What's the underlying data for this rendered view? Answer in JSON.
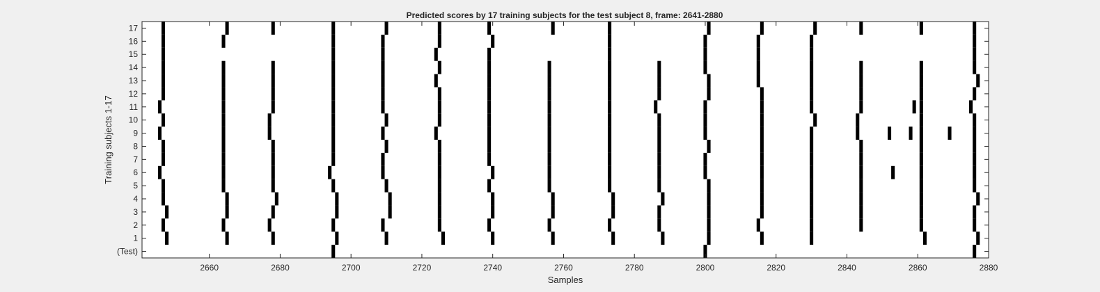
{
  "chart_data": {
    "type": "heatmap",
    "title": "Predicted scores by 17 training subjects for the test subject 8, frame: 2641-2880",
    "xlabel": "Samples",
    "ylabel": "Training subjects 1-17",
    "xlim": [
      2641,
      2880
    ],
    "xticks": [
      2660,
      2680,
      2700,
      2720,
      2740,
      2760,
      2780,
      2800,
      2820,
      2840,
      2860,
      2880
    ],
    "rows": [
      "(Test)",
      "1",
      "2",
      "3",
      "4",
      "5",
      "6",
      "7",
      "8",
      "9",
      "10",
      "11",
      "12",
      "13",
      "14",
      "15",
      "16",
      "17"
    ],
    "grid": false,
    "colors": {
      "mark": "#000000",
      "background": "#ffffff",
      "figure": "#f0f0f0"
    },
    "series": [
      {
        "row": "(Test)",
        "x": [
          2695,
          2800,
          2876
        ]
      },
      {
        "row": "1",
        "x": [
          2648,
          2665,
          2678,
          2696,
          2710,
          2726,
          2740,
          2757,
          2774,
          2788,
          2801,
          2816,
          2830,
          2862,
          2877
        ]
      },
      {
        "row": "2",
        "x": [
          2647,
          2664,
          2677,
          2695,
          2709,
          2725,
          2739,
          2756,
          2773,
          2787,
          2801,
          2815,
          2830,
          2844,
          2861,
          2876
        ]
      },
      {
        "row": "3",
        "x": [
          2648,
          2665,
          2678,
          2696,
          2711,
          2725,
          2740,
          2757,
          2774,
          2787,
          2801,
          2816,
          2830,
          2844,
          2861,
          2876
        ]
      },
      {
        "row": "4",
        "x": [
          2647,
          2665,
          2679,
          2696,
          2711,
          2725,
          2740,
          2757,
          2774,
          2788,
          2801,
          2816,
          2830,
          2844,
          2861,
          2877
        ]
      },
      {
        "row": "5",
        "x": [
          2647,
          2664,
          2678,
          2695,
          2710,
          2725,
          2739,
          2756,
          2773,
          2787,
          2801,
          2816,
          2830,
          2844,
          2861,
          2876
        ]
      },
      {
        "row": "6",
        "x": [
          2646,
          2664,
          2678,
          2694,
          2709,
          2725,
          2740,
          2756,
          2773,
          2787,
          2800,
          2816,
          2830,
          2844,
          2853,
          2861,
          2876
        ]
      },
      {
        "row": "7",
        "x": [
          2647,
          2664,
          2678,
          2695,
          2709,
          2725,
          2739,
          2756,
          2773,
          2787,
          2800,
          2816,
          2830,
          2844,
          2861,
          2876
        ]
      },
      {
        "row": "8",
        "x": [
          2647,
          2664,
          2678,
          2695,
          2710,
          2725,
          2739,
          2756,
          2773,
          2787,
          2801,
          2816,
          2830,
          2844,
          2861,
          2876
        ]
      },
      {
        "row": "9",
        "x": [
          2646,
          2664,
          2677,
          2695,
          2709,
          2724,
          2739,
          2756,
          2773,
          2787,
          2800,
          2816,
          2830,
          2843,
          2852,
          2858,
          2861,
          2869,
          2876
        ]
      },
      {
        "row": "10",
        "x": [
          2647,
          2664,
          2677,
          2695,
          2710,
          2725,
          2739,
          2756,
          2773,
          2787,
          2800,
          2816,
          2831,
          2843,
          2861,
          2876
        ]
      },
      {
        "row": "11",
        "x": [
          2646,
          2664,
          2678,
          2695,
          2709,
          2725,
          2739,
          2756,
          2773,
          2786,
          2800,
          2816,
          2830,
          2844,
          2859,
          2861,
          2875
        ]
      },
      {
        "row": "12",
        "x": [
          2647,
          2664,
          2678,
          2695,
          2709,
          2725,
          2739,
          2756,
          2773,
          2787,
          2801,
          2816,
          2830,
          2844,
          2861,
          2876
        ]
      },
      {
        "row": "13",
        "x": [
          2647,
          2664,
          2678,
          2695,
          2709,
          2724,
          2739,
          2756,
          2773,
          2787,
          2801,
          2815,
          2830,
          2844,
          2861,
          2877
        ]
      },
      {
        "row": "14",
        "x": [
          2647,
          2664,
          2678,
          2695,
          2709,
          2725,
          2739,
          2756,
          2773,
          2787,
          2800,
          2815,
          2830,
          2844,
          2861,
          2876
        ]
      },
      {
        "row": "15",
        "x": [
          2647,
          2695,
          2709,
          2724,
          2739,
          2773,
          2800,
          2815,
          2830,
          2876
        ]
      },
      {
        "row": "16",
        "x": [
          2647,
          2664,
          2695,
          2709,
          2725,
          2740,
          2773,
          2800,
          2815,
          2830,
          2876
        ]
      },
      {
        "row": "17",
        "x": [
          2647,
          2665,
          2678,
          2695,
          2710,
          2725,
          2739,
          2757,
          2773,
          2801,
          2816,
          2831,
          2844,
          2861,
          2876
        ]
      }
    ]
  }
}
